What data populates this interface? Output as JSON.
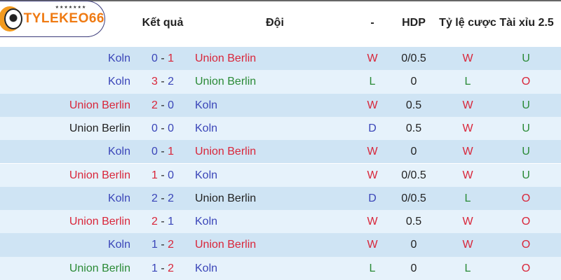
{
  "brand": {
    "name": "TYLEKEO66",
    "stars": "★★★★★★★"
  },
  "columns": {
    "result": "Kết quả",
    "team": "Đội",
    "dash": "-",
    "hdp": "HDP",
    "odds": "Tỷ lệ cược",
    "ou": "Tài xỉu 2.5"
  },
  "colors": {
    "red": "#d9263a",
    "blue": "#3a45b8",
    "green": "#2a8a36",
    "row_odd": "#cfe4f4",
    "row_even": "#e6f2fb"
  },
  "rows": [
    {
      "home": "Koln",
      "home_color": "blue",
      "hs": "0",
      "hs_color": "blue",
      "as": "1",
      "as_color": "red",
      "away": "Union Berlin",
      "away_color": "red",
      "res": "W",
      "res_color": "red",
      "hdp": "0/0.5",
      "odds": "W",
      "odds_color": "red",
      "ou": "U",
      "ou_color": "green"
    },
    {
      "home": "Koln",
      "home_color": "blue",
      "hs": "3",
      "hs_color": "red",
      "as": "2",
      "as_color": "blue",
      "away": "Union Berlin",
      "away_color": "green",
      "res": "L",
      "res_color": "green",
      "hdp": "0",
      "odds": "L",
      "odds_color": "green",
      "ou": "O",
      "ou_color": "red"
    },
    {
      "home": "Union Berlin",
      "home_color": "red",
      "hs": "2",
      "hs_color": "red",
      "as": "0",
      "as_color": "blue",
      "away": "Koln",
      "away_color": "blue",
      "res": "W",
      "res_color": "red",
      "hdp": "0.5",
      "odds": "W",
      "odds_color": "red",
      "ou": "U",
      "ou_color": "green"
    },
    {
      "home": "Union Berlin",
      "home_color": "dark",
      "hs": "0",
      "hs_color": "blue",
      "as": "0",
      "as_color": "blue",
      "away": "Koln",
      "away_color": "blue",
      "res": "D",
      "res_color": "blue",
      "hdp": "0.5",
      "odds": "W",
      "odds_color": "red",
      "ou": "U",
      "ou_color": "green"
    },
    {
      "home": "Koln",
      "home_color": "blue",
      "hs": "0",
      "hs_color": "blue",
      "as": "1",
      "as_color": "red",
      "away": "Union Berlin",
      "away_color": "red",
      "res": "W",
      "res_color": "red",
      "hdp": "0",
      "odds": "W",
      "odds_color": "red",
      "ou": "U",
      "ou_color": "green"
    },
    {
      "home": "Union Berlin",
      "home_color": "red",
      "hs": "1",
      "hs_color": "red",
      "as": "0",
      "as_color": "blue",
      "away": "Koln",
      "away_color": "blue",
      "res": "W",
      "res_color": "red",
      "hdp": "0/0.5",
      "odds": "W",
      "odds_color": "red",
      "ou": "U",
      "ou_color": "green"
    },
    {
      "home": "Koln",
      "home_color": "blue",
      "hs": "2",
      "hs_color": "blue",
      "as": "2",
      "as_color": "blue",
      "away": "Union Berlin",
      "away_color": "dark",
      "res": "D",
      "res_color": "blue",
      "hdp": "0/0.5",
      "odds": "L",
      "odds_color": "green",
      "ou": "O",
      "ou_color": "red"
    },
    {
      "home": "Union Berlin",
      "home_color": "red",
      "hs": "2",
      "hs_color": "red",
      "as": "1",
      "as_color": "blue",
      "away": "Koln",
      "away_color": "blue",
      "res": "W",
      "res_color": "red",
      "hdp": "0.5",
      "odds": "W",
      "odds_color": "red",
      "ou": "O",
      "ou_color": "red"
    },
    {
      "home": "Koln",
      "home_color": "blue",
      "hs": "1",
      "hs_color": "blue",
      "as": "2",
      "as_color": "red",
      "away": "Union Berlin",
      "away_color": "red",
      "res": "W",
      "res_color": "red",
      "hdp": "0",
      "odds": "W",
      "odds_color": "red",
      "ou": "O",
      "ou_color": "red"
    },
    {
      "home": "Union Berlin",
      "home_color": "green",
      "hs": "1",
      "hs_color": "blue",
      "as": "2",
      "as_color": "red",
      "away": "Koln",
      "away_color": "blue",
      "res": "L",
      "res_color": "green",
      "hdp": "0",
      "odds": "L",
      "odds_color": "green",
      "ou": "O",
      "ou_color": "red"
    }
  ]
}
